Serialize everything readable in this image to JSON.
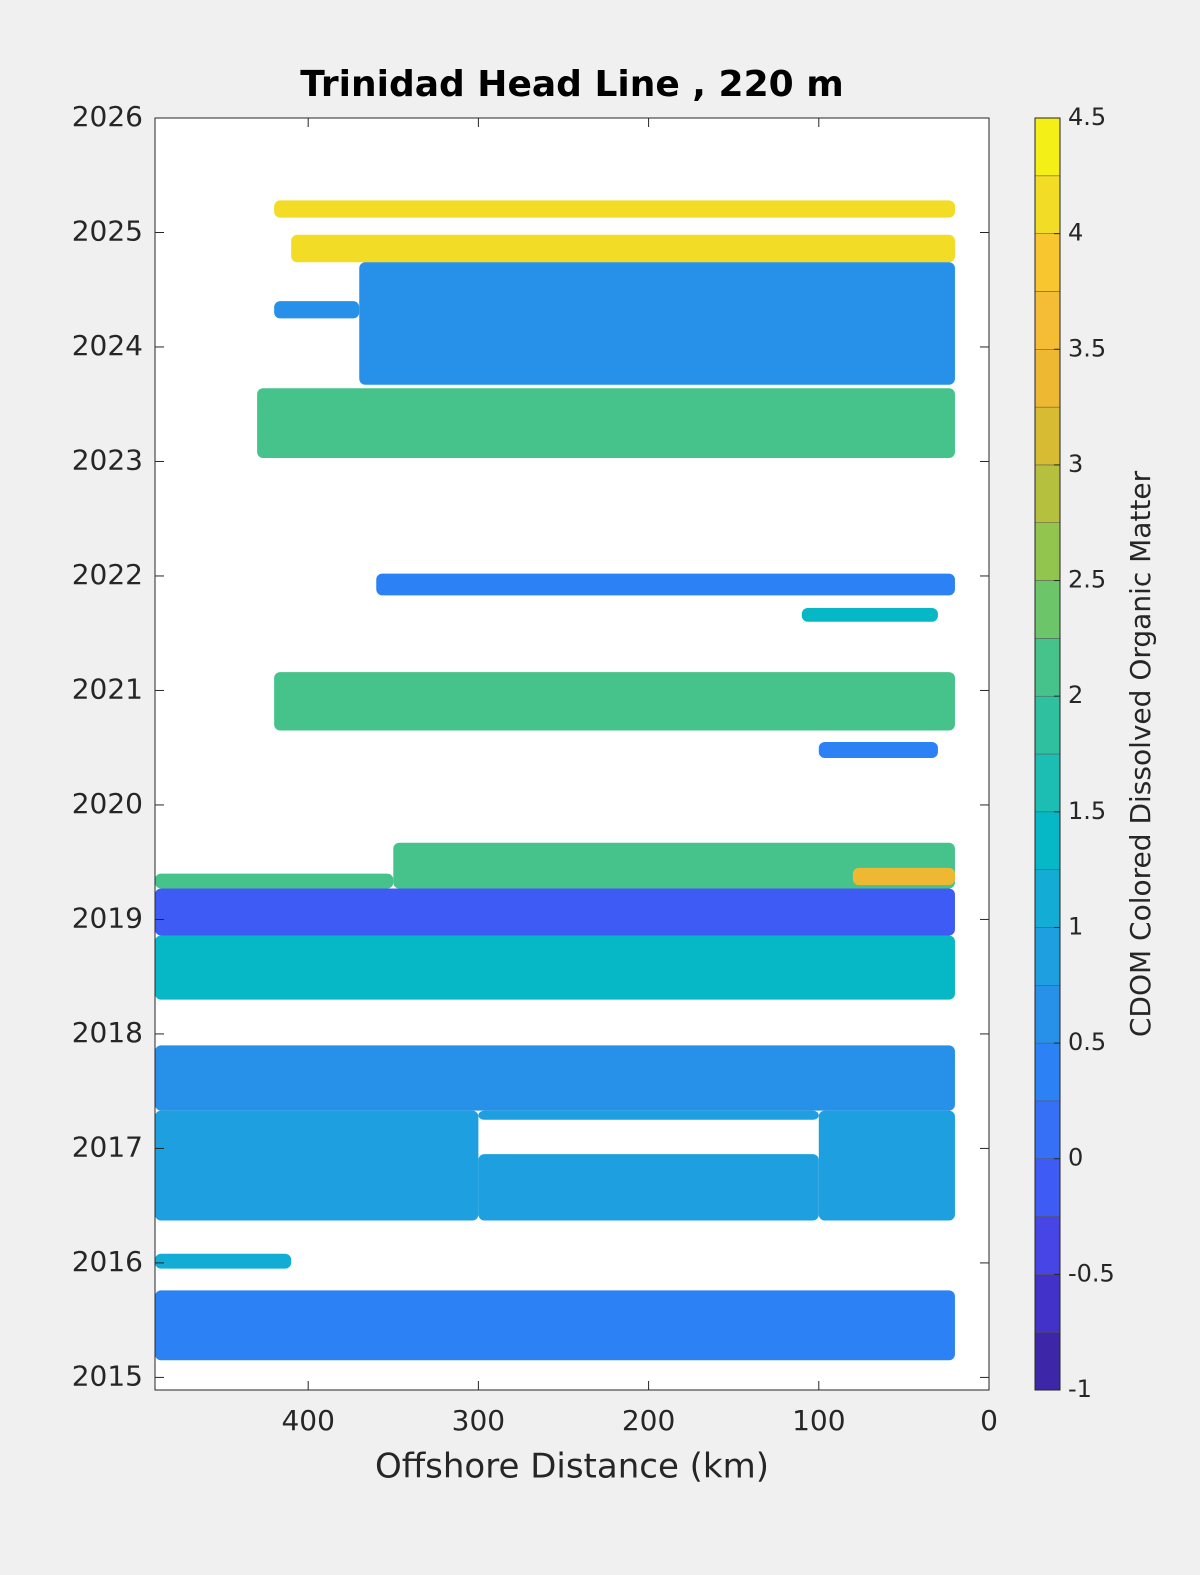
{
  "chart_data": {
    "type": "contourf",
    "title": "Trinidad Head Line , 220 m",
    "xlabel": "Offshore Distance (km)",
    "colorbar_label": "CDOM Colored Dissolved Organic Matter",
    "xlim": [
      490,
      0
    ],
    "xticks": [
      400,
      300,
      200,
      100,
      0
    ],
    "ylim": [
      2014.89,
      2026
    ],
    "yticks": [
      2015,
      2016,
      2017,
      2018,
      2019,
      2020,
      2021,
      2022,
      2023,
      2024,
      2025,
      2026
    ],
    "clim": [
      -1,
      4.5
    ],
    "cticks": [
      -1,
      -0.5,
      0,
      0.5,
      1,
      1.5,
      2,
      2.5,
      3,
      3.5,
      4,
      4.5
    ],
    "colors": [
      "#3e26a8",
      "#4332c9",
      "#4745e6",
      "#3f5bf5",
      "#3570f7",
      "#2c82f4",
      "#2790e8",
      "#1e9fdf",
      "#13acd5",
      "#06b7c6",
      "#1cbdb2",
      "#2fc09f",
      "#45c38a",
      "#6dc56a",
      "#92c54d",
      "#b5c03e",
      "#d6bb33",
      "#efb832",
      "#f5bd36",
      "#f8c72f",
      "#f3dc25",
      "#f5ef18"
    ],
    "regions": [
      {
        "x": [
          420,
          20
        ],
        "y": [
          2025.13,
          2025.28
        ],
        "value": 4
      },
      {
        "x": [
          410,
          20
        ],
        "y": [
          2024.74,
          2024.98
        ],
        "value": 4
      },
      {
        "x": [
          370,
          20
        ],
        "y": [
          2023.67,
          2024.74
        ],
        "value": 0.5
      },
      {
        "x": [
          420,
          370
        ],
        "y": [
          2024.25,
          2024.4
        ],
        "value": 0.5
      },
      {
        "x": [
          430,
          20
        ],
        "y": [
          2023.03,
          2023.64
        ],
        "value": 2
      },
      {
        "x": [
          360,
          20
        ],
        "y": [
          2021.83,
          2022.02
        ],
        "value": 0.25
      },
      {
        "x": [
          110,
          30
        ],
        "y": [
          2021.6,
          2021.72
        ],
        "value": 1.25
      },
      {
        "x": [
          420,
          20
        ],
        "y": [
          2020.65,
          2021.16
        ],
        "value": 2
      },
      {
        "x": [
          100,
          30
        ],
        "y": [
          2020.41,
          2020.55
        ],
        "value": 0.25
      },
      {
        "x": [
          350,
          20
        ],
        "y": [
          2019.27,
          2019.67
        ],
        "value": 2
      },
      {
        "x": [
          490,
          350
        ],
        "y": [
          2019.27,
          2019.4
        ],
        "value": 2
      },
      {
        "x": [
          80,
          20
        ],
        "y": [
          2019.3,
          2019.45
        ],
        "value": 3.25
      },
      {
        "x": [
          490,
          20
        ],
        "y": [
          2018.86,
          2019.27
        ],
        "value": -0.25
      },
      {
        "x": [
          490,
          20
        ],
        "y": [
          2018.3,
          2018.86
        ],
        "value": 1.25
      },
      {
        "x": [
          490,
          20
        ],
        "y": [
          2017.33,
          2017.9
        ],
        "value": 0.5
      },
      {
        "x": [
          490,
          300
        ],
        "y": [
          2016.37,
          2017.33
        ],
        "value": 0.75
      },
      {
        "x": [
          100,
          20
        ],
        "y": [
          2016.37,
          2017.33
        ],
        "value": 0.75
      },
      {
        "x": [
          300,
          100
        ],
        "y": [
          2016.37,
          2016.95
        ],
        "value": 0.75
      },
      {
        "x": [
          300,
          100
        ],
        "y": [
          2017.25,
          2017.33
        ],
        "value": 0.75
      },
      {
        "x": [
          490,
          410
        ],
        "y": [
          2015.95,
          2016.08
        ],
        "value": 1
      },
      {
        "x": [
          490,
          20
        ],
        "y": [
          2015.15,
          2015.76
        ],
        "value": 0.25
      }
    ]
  }
}
